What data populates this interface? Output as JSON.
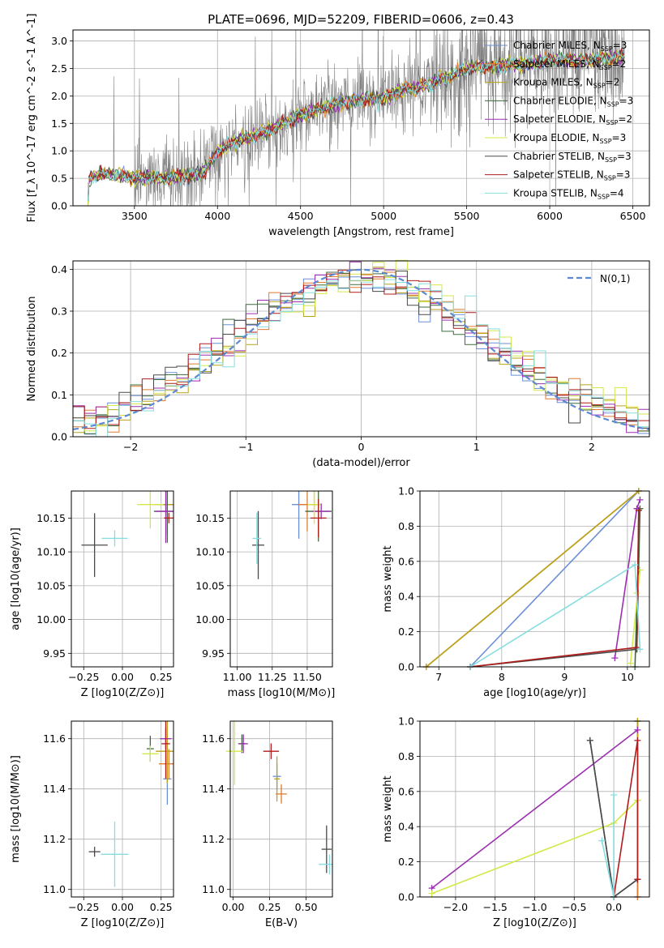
{
  "title": "PLATE=0696, MJD=52209, FIBERID=0606, z=0.43",
  "colors": {
    "data": "#808080",
    "Chabrier MILES": "#6a8fd6",
    "Salpeter MILES": "#e07a2e",
    "Kroupa MILES": "#b8a31a",
    "Chabrier ELODIE": "#3d6b3d",
    "Salpeter ELODIE": "#9b2fb0",
    "Kroupa ELODIE": "#d4e84a",
    "Chabrier STELIB": "#4a4a4a",
    "Salpeter STELIB": "#b01b1b",
    "Kroupa STELIB": "#86dde0",
    "gaussian": "#5b8ad1"
  },
  "legend_entries": [
    {
      "name": "Chabrier MILES",
      "nssp": "3"
    },
    {
      "name": "Salpeter MILES",
      "nssp": "2"
    },
    {
      "name": "Kroupa MILES",
      "nssp": "2"
    },
    {
      "name": "Chabrier ELODIE",
      "nssp": "3"
    },
    {
      "name": "Salpeter ELODIE",
      "nssp": "2"
    },
    {
      "name": "Kroupa ELODIE",
      "nssp": "3"
    },
    {
      "name": "Chabrier STELIB",
      "nssp": "3"
    },
    {
      "name": "Salpeter STELIB",
      "nssp": "3"
    },
    {
      "name": "Kroupa STELIB",
      "nssp": "4"
    }
  ],
  "chart_data": [
    {
      "type": "line",
      "panel": "spectrum",
      "xlabel": "wavelength [Angstrom, rest frame]",
      "ylabel": "Flux [f_λ 10^-17 erg cm^-2 s^-1 A^-1]",
      "xlim": [
        3130,
        6600
      ],
      "ylim": [
        0,
        3.2
      ],
      "xticks": [
        3500,
        4000,
        4500,
        5000,
        5500,
        6000,
        6500
      ],
      "yticks": [
        0.0,
        0.5,
        1.0,
        1.5,
        2.0,
        2.5,
        3.0
      ],
      "x": [
        3220,
        3240,
        3300,
        3500,
        3700,
        3900,
        3950,
        4000,
        4100,
        4300,
        4500,
        4700,
        4900,
        5000,
        5100,
        5200,
        5300,
        5400,
        5500,
        5700,
        5900,
        6000,
        6200,
        6400,
        6450
      ],
      "model_flux": [
        0.4,
        0.52,
        0.58,
        0.52,
        0.5,
        0.58,
        0.75,
        1.0,
        1.15,
        1.35,
        1.65,
        1.85,
        1.95,
        1.95,
        2.1,
        2.15,
        2.25,
        2.35,
        2.5,
        2.55,
        2.6,
        2.65,
        2.65,
        2.7,
        2.72
      ],
      "grid": true,
      "legend_position": "right"
    },
    {
      "type": "histogram",
      "panel": "residuals",
      "xlabel": "(data-model)/error",
      "ylabel": "Normed distribution",
      "xlim": [
        -2.5,
        2.5
      ],
      "ylim": [
        0,
        0.42
      ],
      "xticks": [
        -2,
        -1,
        0,
        1,
        2
      ],
      "yticks": [
        0.0,
        0.1,
        0.2,
        0.3,
        0.4
      ],
      "legend": "N(0,1)",
      "grid": true
    },
    {
      "type": "scatter",
      "panel": "age-vs-Z",
      "xlabel": "Z [log10(Z/Z⊙)]",
      "ylabel": "age [log10(age/yr)]",
      "xlim": [
        -0.33,
        0.33
      ],
      "ylim": [
        9.93,
        10.19
      ],
      "xticks": [
        -0.25,
        0.0,
        0.25
      ],
      "yticks": [
        9.95,
        10.0,
        10.05,
        10.1,
        10.15
      ],
      "points": [
        {
          "series": "Chabrier MILES",
          "x": 0.29,
          "y": 10.17
        },
        {
          "series": "Salpeter MILES",
          "x": 0.29,
          "y": 10.17
        },
        {
          "series": "Kroupa MILES",
          "x": 0.29,
          "y": 10.17
        },
        {
          "series": "Chabrier ELODIE",
          "x": 0.29,
          "y": 10.16
        },
        {
          "series": "Salpeter ELODIE",
          "x": 0.28,
          "y": 10.16
        },
        {
          "series": "Kroupa ELODIE",
          "x": 0.18,
          "y": 10.17
        },
        {
          "series": "Chabrier STELIB",
          "x": -0.18,
          "y": 10.11
        },
        {
          "series": "Salpeter STELIB",
          "x": 0.3,
          "y": 10.15
        },
        {
          "series": "Kroupa STELIB",
          "x": -0.05,
          "y": 10.12
        }
      ]
    },
    {
      "type": "scatter",
      "panel": "age-vs-mass",
      "xlabel": "mass [log10(M/M⊙)]",
      "xlim": [
        10.95,
        11.68
      ],
      "ylim": [
        9.93,
        10.19
      ],
      "xticks": [
        11.0,
        11.25,
        11.5
      ],
      "yticks": [
        9.95,
        10.0,
        10.05,
        10.1,
        10.15
      ],
      "points": [
        {
          "series": "Chabrier MILES",
          "x": 11.44,
          "y": 10.17
        },
        {
          "series": "Salpeter MILES",
          "x": 11.5,
          "y": 10.17
        },
        {
          "series": "Kroupa MILES",
          "x": 11.55,
          "y": 10.17
        },
        {
          "series": "Chabrier ELODIE",
          "x": 11.58,
          "y": 10.16
        },
        {
          "series": "Salpeter ELODIE",
          "x": 11.6,
          "y": 10.16
        },
        {
          "series": "Kroupa ELODIE",
          "x": 11.55,
          "y": 10.17
        },
        {
          "series": "Chabrier STELIB",
          "x": 11.15,
          "y": 10.11
        },
        {
          "series": "Salpeter STELIB",
          "x": 11.58,
          "y": 10.15
        },
        {
          "series": "Kroupa STELIB",
          "x": 11.14,
          "y": 10.12
        }
      ]
    },
    {
      "type": "line",
      "panel": "weight-vs-age",
      "xlabel": "age [log10(age/yr)]",
      "ylabel": "mass weight",
      "xlim": [
        6.7,
        10.35
      ],
      "ylim": [
        0,
        1.0
      ],
      "xticks": [
        7,
        8,
        9,
        10
      ],
      "yticks": [
        0.0,
        0.2,
        0.4,
        0.6,
        0.8,
        1.0
      ],
      "series": [
        {
          "name": "Chabrier MILES",
          "x": [
            7.5,
            10.18
          ],
          "y": [
            0.0,
            1.0
          ]
        },
        {
          "name": "Salpeter MILES",
          "x": [
            6.8,
            10.18
          ],
          "y": [
            0.0,
            1.0
          ]
        },
        {
          "name": "Kroupa MILES",
          "x": [
            6.8,
            10.18
          ],
          "y": [
            0.0,
            1.0
          ]
        },
        {
          "name": "Chabrier ELODIE",
          "x": [
            10.12,
            10.2,
            10.15
          ],
          "y": [
            0.0,
            0.9,
            0.1
          ]
        },
        {
          "name": "Salpeter ELODIE",
          "x": [
            9.8,
            10.15,
            10.2
          ],
          "y": [
            0.05,
            0.9,
            0.95
          ]
        },
        {
          "name": "Kroupa ELODIE",
          "x": [
            10.05,
            10.2,
            10.15
          ],
          "y": [
            0.02,
            0.55,
            0.42
          ]
        },
        {
          "name": "Chabrier STELIB",
          "x": [
            7.5,
            10.15,
            10.18
          ],
          "y": [
            0.0,
            0.1,
            0.89
          ]
        },
        {
          "name": "Salpeter STELIB",
          "x": [
            7.5,
            10.15,
            10.18
          ],
          "y": [
            0.0,
            0.11,
            0.89
          ]
        },
        {
          "name": "Kroupa STELIB",
          "x": [
            7.5,
            10.12,
            10.2
          ],
          "y": [
            0.0,
            0.58,
            0.1
          ]
        }
      ]
    },
    {
      "type": "scatter",
      "panel": "mass-vs-Z",
      "xlabel": "Z [log10(Z/Z⊙)]",
      "ylabel": "mass [log10(M/M⊙)]",
      "xlim": [
        -0.33,
        0.33
      ],
      "ylim": [
        10.97,
        11.67
      ],
      "xticks": [
        -0.25,
        0.0,
        0.25
      ],
      "yticks": [
        11.0,
        11.2,
        11.4,
        11.6
      ],
      "points": [
        {
          "series": "Chabrier MILES",
          "x": 0.29,
          "y": 11.44
        },
        {
          "series": "Salpeter MILES",
          "x": 0.3,
          "y": 11.5
        },
        {
          "series": "Kroupa MILES",
          "x": 0.29,
          "y": 11.55
        },
        {
          "series": "Chabrier ELODIE",
          "x": 0.18,
          "y": 11.56
        },
        {
          "series": "Salpeter ELODIE",
          "x": 0.28,
          "y": 11.6
        },
        {
          "series": "Kroupa ELODIE",
          "x": 0.18,
          "y": 11.54
        },
        {
          "series": "Chabrier STELIB",
          "x": -0.18,
          "y": 11.15
        },
        {
          "series": "Salpeter STELIB",
          "x": 0.28,
          "y": 11.58
        },
        {
          "series": "Kroupa STELIB",
          "x": -0.05,
          "y": 11.14
        }
      ]
    },
    {
      "type": "scatter",
      "panel": "mass-vs-ebv",
      "xlabel": "E(B-V)",
      "xlim": [
        -0.02,
        0.68
      ],
      "ylim": [
        10.97,
        11.67
      ],
      "xticks": [
        0.0,
        0.25,
        0.5
      ],
      "yticks": [
        11.0,
        11.2,
        11.4,
        11.6
      ],
      "points": [
        {
          "series": "Chabrier MILES",
          "x": 0.3,
          "y": 11.45
        },
        {
          "series": "Salpeter MILES",
          "x": 0.33,
          "y": 11.38
        },
        {
          "series": "Kroupa MILES",
          "x": 0.3,
          "y": 11.44
        },
        {
          "series": "Chabrier ELODIE",
          "x": 0.06,
          "y": 11.58
        },
        {
          "series": "Salpeter ELODIE",
          "x": 0.07,
          "y": 11.58
        },
        {
          "series": "Kroupa ELODIE",
          "x": 0.01,
          "y": 11.55
        },
        {
          "series": "Chabrier STELIB",
          "x": 0.64,
          "y": 11.16
        },
        {
          "series": "Salpeter STELIB",
          "x": 0.26,
          "y": 11.55
        },
        {
          "series": "Kroupa STELIB",
          "x": 0.66,
          "y": 11.1
        }
      ]
    },
    {
      "type": "line",
      "panel": "weight-vs-Z",
      "xlabel": "Z [log10(Z/Z⊙)]",
      "ylabel": "mass weight",
      "xlim": [
        -2.45,
        0.45
      ],
      "ylim": [
        0,
        1.0
      ],
      "xticks": [
        -2.0,
        -1.5,
        -1.0,
        -0.5,
        0.0
      ],
      "yticks": [
        0.0,
        0.2,
        0.4,
        0.6,
        0.8,
        1.0
      ],
      "series": [
        {
          "name": "Chabrier MILES",
          "x": [
            0.3,
            0.3
          ],
          "y": [
            0.0,
            1.0
          ]
        },
        {
          "name": "Salpeter MILES",
          "x": [
            0.3,
            0.3
          ],
          "y": [
            0.0,
            1.0
          ]
        },
        {
          "name": "Kroupa MILES",
          "x": [
            0.3,
            0.3
          ],
          "y": [
            0.55,
            1.0
          ]
        },
        {
          "name": "Chabrier ELODIE",
          "x": [
            -0.3,
            0.0,
            0.3
          ],
          "y": [
            0.89,
            0.0,
            0.1
          ]
        },
        {
          "name": "Salpeter ELODIE",
          "x": [
            -2.3,
            0.3
          ],
          "y": [
            0.05,
            0.95
          ]
        },
        {
          "name": "Kroupa ELODIE",
          "x": [
            -2.3,
            0.0,
            0.3
          ],
          "y": [
            0.02,
            0.42,
            0.55
          ]
        },
        {
          "name": "Chabrier STELIB",
          "x": [
            -0.3,
            0.0,
            0.3
          ],
          "y": [
            0.89,
            0.0,
            0.1
          ]
        },
        {
          "name": "Salpeter STELIB",
          "x": [
            0.0,
            0.3,
            0.3
          ],
          "y": [
            0.0,
            0.89,
            0.1
          ]
        },
        {
          "name": "Kroupa STELIB",
          "x": [
            -0.15,
            0.0,
            0.0
          ],
          "y": [
            0.32,
            0.0,
            0.58
          ]
        }
      ]
    }
  ]
}
